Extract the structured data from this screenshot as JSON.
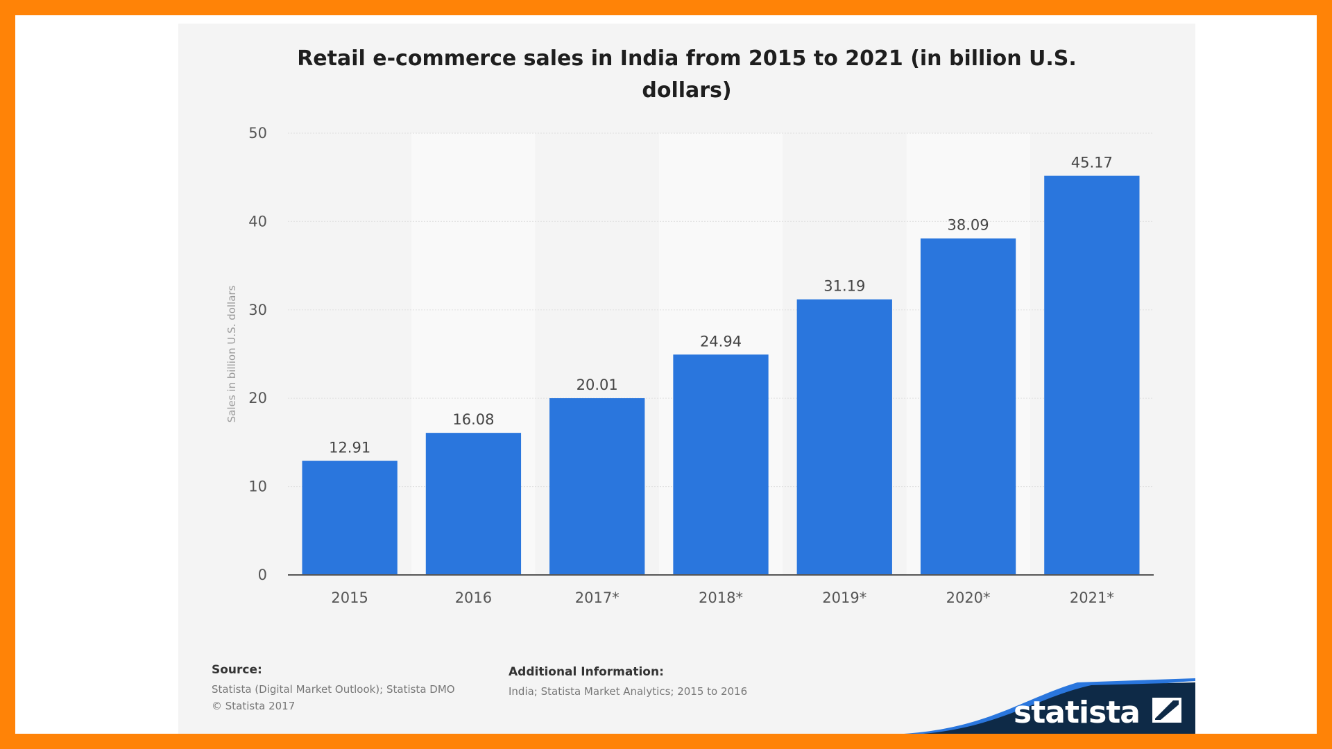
{
  "chart_data": {
    "type": "bar",
    "title_lines": [
      "Retail e-commerce sales in India from 2015 to 2021 (in billion U.S.",
      "dollars)"
    ],
    "categories": [
      "2015",
      "2016",
      "2017*",
      "2018*",
      "2019*",
      "2020*",
      "2021*"
    ],
    "values": [
      12.91,
      16.08,
      20.01,
      24.94,
      31.19,
      38.09,
      45.17
    ],
    "value_labels": [
      "12.91",
      "16.08",
      "20.01",
      "24.94",
      "31.19",
      "38.09",
      "45.17"
    ],
    "ylabel": "Sales in billion U.S. dollars",
    "xlabel": "",
    "ylim": [
      0,
      50
    ],
    "yticks": [
      0,
      10,
      20,
      30,
      40,
      50
    ],
    "grid": true,
    "bar_color": "#2a76dd"
  },
  "footer": {
    "source_heading": "Source:",
    "source_lines": [
      "Statista (Digital Market Outlook); Statista DMO",
      "© Statista 2017"
    ],
    "additional_heading": "Additional Information:",
    "additional_text": "India; Statista Market Analytics; 2015 to 2016"
  },
  "brand": {
    "logo_text": "statista",
    "frame_color": "#ff8307",
    "logo_dark": "#0e2a47",
    "logo_blue": "#2a76dd"
  }
}
